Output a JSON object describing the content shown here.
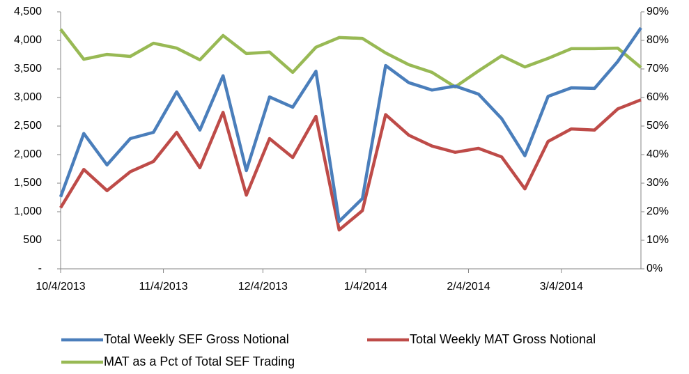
{
  "chart_data": {
    "type": "line",
    "x": [
      "10/4/2013",
      "10/11/2013",
      "10/18/2013",
      "10/25/2013",
      "11/1/2013",
      "11/8/2013",
      "11/15/2013",
      "11/22/2013",
      "11/29/2013",
      "12/6/2013",
      "12/13/2013",
      "12/20/2013",
      "12/27/2013",
      "1/3/2014",
      "1/10/2014",
      "1/17/2014",
      "1/24/2014",
      "1/31/2014",
      "2/7/2014",
      "2/14/2014",
      "2/21/2014",
      "2/28/2014",
      "3/7/2014",
      "3/14/2014",
      "3/21/2014",
      "3/28/2014"
    ],
    "xlim": [
      "10/4/2013",
      "3/28/2014"
    ],
    "xticks": [
      "10/4/2013",
      "11/4/2013",
      "12/4/2013",
      "1/4/2014",
      "2/4/2014",
      "3/4/2014"
    ],
    "ylim": [
      0,
      4500
    ],
    "yticks": [
      {
        "value": 0,
        "label": "-"
      },
      500,
      {
        "value": 1000,
        "label": "1,000"
      },
      {
        "value": 1500,
        "label": "1,500"
      },
      {
        "value": 2000,
        "label": "2,000"
      },
      {
        "value": 2500,
        "label": "2,500"
      },
      {
        "value": 3000,
        "label": "3,000"
      },
      {
        "value": 3500,
        "label": "3,500"
      },
      {
        "value": 4000,
        "label": "4,000"
      },
      {
        "value": 4500,
        "label": "4,500"
      }
    ],
    "y2lim": [
      0,
      90
    ],
    "y2ticks": [
      {
        "value": 0,
        "label": "0%"
      },
      {
        "value": 10,
        "label": "10%"
      },
      {
        "value": 20,
        "label": "20%"
      },
      {
        "value": 30,
        "label": "30%"
      },
      {
        "value": 40,
        "label": "40%"
      },
      {
        "value": 50,
        "label": "50%"
      },
      {
        "value": 60,
        "label": "60%"
      },
      {
        "value": 70,
        "label": "70%"
      },
      {
        "value": 80,
        "label": "80%"
      },
      {
        "value": 90,
        "label": "90%"
      }
    ],
    "grid": false,
    "series": [
      {
        "name": "Total Weekly SEF Gross Notional",
        "color": "#4a7ebb",
        "values": [
          1260,
          2370,
          1820,
          2280,
          2390,
          3100,
          2430,
          3380,
          1720,
          3010,
          2830,
          3460,
          830,
          1230,
          3560,
          3260,
          3130,
          3200,
          3060,
          2630,
          1980,
          3020,
          3170,
          3160,
          3630,
          4220
        ]
      },
      {
        "name": "Total Weekly MAT Gross Notional",
        "color": "#be4b48",
        "values": [
          1070,
          1740,
          1370,
          1700,
          1880,
          2390,
          1770,
          2740,
          1290,
          2280,
          1950,
          2670,
          680,
          1020,
          2700,
          2340,
          2150,
          2040,
          2110,
          1960,
          1400,
          2230,
          2450,
          2430,
          2800,
          2960
        ]
      },
      {
        "name": "MAT as a Pct of Total SEF Trading",
        "color": "#98b954",
        "axis": "y2",
        "values": [
          83.9,
          73.4,
          75.1,
          74.4,
          79.0,
          77.3,
          73.2,
          81.7,
          75.4,
          75.9,
          68.8,
          77.6,
          81.0,
          80.7,
          75.6,
          71.5,
          68.8,
          63.7,
          69.3,
          74.6,
          70.7,
          73.7,
          77.1,
          77.1,
          77.3,
          70.5
        ]
      }
    ]
  }
}
